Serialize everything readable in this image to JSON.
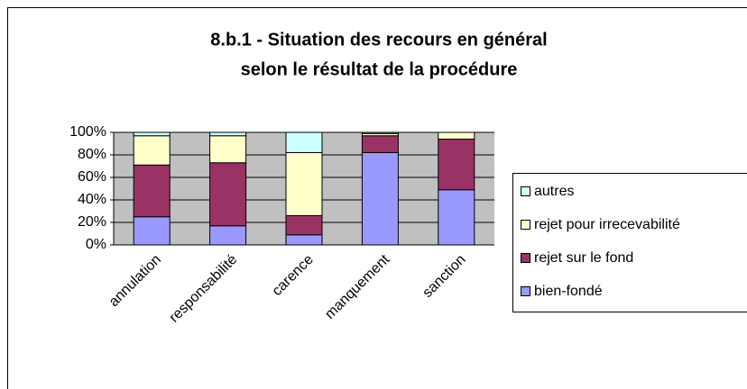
{
  "chart_data": {
    "type": "stacked_bar",
    "title": "8.b.1 - Situation des recours en général",
    "subtitle": "selon le résultat de la procédure",
    "categories": [
      "annulation",
      "responsabilité",
      "carence",
      "manquement",
      "sanction"
    ],
    "series": [
      {
        "name": "bien-fondé",
        "color": "#9999ff",
        "values": [
          25,
          17,
          9,
          82,
          49
        ]
      },
      {
        "name": "rejet sur le fond",
        "color": "#993366",
        "values": [
          46,
          56,
          17,
          15,
          45
        ]
      },
      {
        "name": "rejet pour irrecevabilité",
        "color": "#ffffcc",
        "values": [
          26,
          24,
          56,
          2,
          6
        ]
      },
      {
        "name": "autres",
        "color": "#ccffff",
        "values": [
          3,
          3,
          18,
          1,
          0
        ]
      }
    ],
    "ylim": [
      0,
      100
    ],
    "yticks": [
      {
        "value": 0,
        "label": "0%"
      },
      {
        "value": 20,
        "label": "20%"
      },
      {
        "value": 40,
        "label": "40%"
      },
      {
        "value": 60,
        "label": "60%"
      },
      {
        "value": 80,
        "label": "80%"
      },
      {
        "value": 100,
        "label": "100%"
      }
    ],
    "grid": true,
    "legend": "right"
  }
}
